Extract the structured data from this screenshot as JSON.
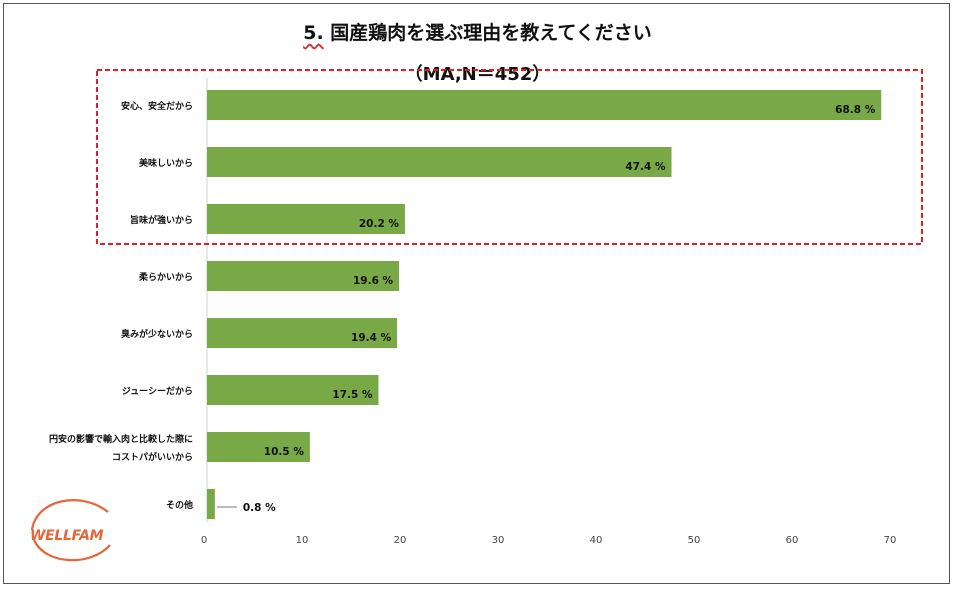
{
  "title": {
    "number": "5.",
    "text": "国産鶏肉を選ぶ理由を教えてください",
    "subtitle": "（MA,N＝452）"
  },
  "logo": {
    "text": "WELLFAM",
    "color": "#e8643a"
  },
  "highlight": {
    "color": "#e02020",
    "style": "dashed",
    "covers_first_n": 3
  },
  "chart_data": {
    "type": "bar",
    "orientation": "horizontal",
    "categories": [
      [
        "安心、安全だから"
      ],
      [
        "美味しいから"
      ],
      [
        "旨味が強いから"
      ],
      [
        "柔らかいから"
      ],
      [
        "臭みが少ないから"
      ],
      [
        "ジューシーだから"
      ],
      [
        "円安の影響で輸入肉と比較した際に",
        "コストパがいいから"
      ],
      [
        "その他"
      ]
    ],
    "values": [
      68.8,
      47.4,
      20.2,
      19.6,
      19.4,
      17.5,
      10.5,
      0.8
    ],
    "value_labels": [
      "68.8 %",
      "47.4 %",
      "20.2 %",
      "19.6 %",
      "19.4 %",
      "17.5 %",
      "10.5 %",
      "0.8 %"
    ],
    "xlim": [
      0,
      70
    ],
    "xticks": [
      0,
      10,
      20,
      30,
      40,
      50,
      60,
      70
    ],
    "bar_color": "#78a946",
    "grid": false,
    "legend": "none"
  }
}
